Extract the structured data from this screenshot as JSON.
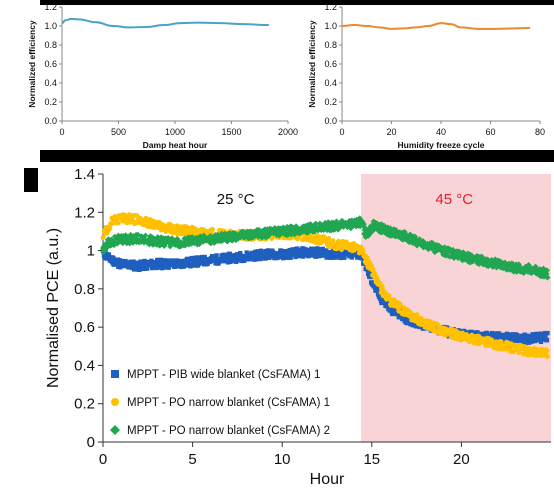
{
  "colors": {
    "top_line_a": "#4aa3c7",
    "top_line_b": "#ea8a2c",
    "blue": "#1f5fbf",
    "yellow": "#ffc000",
    "green": "#21a651",
    "warm_region": "#f8d4d6"
  },
  "chart_data": [
    {
      "type": "line",
      "xlabel": "Damp heat hour",
      "ylabel": "Normalized efficiency",
      "xlim": [
        0,
        2000
      ],
      "ylim": [
        0,
        1.2
      ],
      "xticks": [
        "0",
        "500",
        "1000",
        "1500",
        "2000"
      ],
      "yticks": [
        "0.0",
        "0.2",
        "0.4",
        "0.6",
        "0.8",
        "1.0",
        "1.2"
      ],
      "series": [
        {
          "color": "#4aa3c7",
          "points": [
            [
              0,
              1.03
            ],
            [
              30,
              1.06
            ],
            [
              80,
              1.075
            ],
            [
              150,
              1.07
            ],
            [
              300,
              1.04
            ],
            [
              450,
              1.0
            ],
            [
              600,
              0.985
            ],
            [
              750,
              0.99
            ],
            [
              900,
              1.01
            ],
            [
              1050,
              1.03
            ],
            [
              1200,
              1.035
            ],
            [
              1400,
              1.03
            ],
            [
              1600,
              1.02
            ],
            [
              1830,
              1.01
            ]
          ]
        }
      ]
    },
    {
      "type": "line",
      "xlabel": "Humidity freeze cycle",
      "ylabel": "Normalized efficiency",
      "xlim": [
        0,
        80
      ],
      "ylim": [
        0,
        1.2
      ],
      "xticks": [
        "0",
        "20",
        "40",
        "60",
        "80"
      ],
      "yticks": [
        "0.0",
        "0.2",
        "0.4",
        "0.6",
        "0.8",
        "1.0",
        "1.2"
      ],
      "series": [
        {
          "color": "#ea8a2c",
          "points": [
            [
              0,
              1.0
            ],
            [
              5,
              1.01
            ],
            [
              10,
              1.0
            ],
            [
              15,
              0.985
            ],
            [
              20,
              0.97
            ],
            [
              25,
              0.975
            ],
            [
              30,
              0.985
            ],
            [
              35,
              1.0
            ],
            [
              40,
              1.03
            ],
            [
              44,
              1.02
            ],
            [
              48,
              0.985
            ],
            [
              55,
              0.97
            ],
            [
              62,
              0.97
            ],
            [
              70,
              0.975
            ],
            [
              76,
              0.98
            ]
          ]
        }
      ]
    },
    {
      "type": "scatter",
      "xlabel": "Hour",
      "ylabel": "Normalised PCE (a.u.)",
      "xlim": [
        0,
        25
      ],
      "ylim": [
        0,
        1.4
      ],
      "xticks": [
        "0",
        "5",
        "10",
        "15",
        "20"
      ],
      "yticks": [
        "0",
        "0.2",
        "0.4",
        "0.6",
        "0.8",
        "1",
        "1.2",
        "1.4"
      ],
      "annotations": [
        "25 °C",
        "45 °C"
      ],
      "shaded_region": {
        "x_from": 14.4,
        "x_to": 25
      },
      "legend_position": "bottom-left",
      "series": [
        {
          "name": "MPPT - PIB wide blanket (CsFAMA) 1",
          "color": "#1f5fbf",
          "marker": "square",
          "points": [
            [
              0,
              0.99
            ],
            [
              0.3,
              0.96
            ],
            [
              1,
              0.93
            ],
            [
              2,
              0.92
            ],
            [
              3,
              0.93
            ],
            [
              4,
              0.93
            ],
            [
              5,
              0.94
            ],
            [
              6,
              0.95
            ],
            [
              7,
              0.96
            ],
            [
              8,
              0.97
            ],
            [
              9,
              0.98
            ],
            [
              10,
              0.98
            ],
            [
              11,
              0.99
            ],
            [
              12,
              0.99
            ],
            [
              13,
              0.98
            ],
            [
              14,
              0.98
            ],
            [
              14.4,
              0.98
            ],
            [
              15,
              0.84
            ],
            [
              15.5,
              0.75
            ],
            [
              16,
              0.7
            ],
            [
              17,
              0.64
            ],
            [
              18,
              0.61
            ],
            [
              19,
              0.58
            ],
            [
              20,
              0.56
            ],
            [
              21,
              0.55
            ],
            [
              22,
              0.55
            ],
            [
              23,
              0.54
            ],
            [
              24,
              0.54
            ],
            [
              24.8,
              0.55
            ]
          ]
        },
        {
          "name": "MPPT - PO narrow blanket (CsFAMA) 1",
          "color": "#ffc000",
          "marker": "circle",
          "points": [
            [
              0,
              1.08
            ],
            [
              0.5,
              1.15
            ],
            [
              1,
              1.17
            ],
            [
              2,
              1.16
            ],
            [
              3,
              1.13
            ],
            [
              4,
              1.11
            ],
            [
              5,
              1.1
            ],
            [
              6,
              1.09
            ],
            [
              7,
              1.08
            ],
            [
              8,
              1.08
            ],
            [
              9,
              1.08
            ],
            [
              10,
              1.09
            ],
            [
              11,
              1.08
            ],
            [
              12,
              1.06
            ],
            [
              13,
              1.03
            ],
            [
              14,
              1.02
            ],
            [
              14.4,
              1.0
            ],
            [
              15,
              0.9
            ],
            [
              15.5,
              0.8
            ],
            [
              16,
              0.74
            ],
            [
              17,
              0.67
            ],
            [
              18,
              0.62
            ],
            [
              19,
              0.58
            ],
            [
              20,
              0.55
            ],
            [
              21,
              0.53
            ],
            [
              22,
              0.51
            ],
            [
              23,
              0.49
            ],
            [
              24,
              0.47
            ],
            [
              24.8,
              0.46
            ]
          ]
        },
        {
          "name": "MPPT - PO narrow blanket (CsFAMA) 2",
          "color": "#21a651",
          "marker": "diamond",
          "points": [
            [
              0,
              1.0
            ],
            [
              0.3,
              1.04
            ],
            [
              1,
              1.06
            ],
            [
              2,
              1.06
            ],
            [
              3,
              1.05
            ],
            [
              4,
              1.04
            ],
            [
              5,
              1.05
            ],
            [
              6,
              1.06
            ],
            [
              7,
              1.07
            ],
            [
              8,
              1.08
            ],
            [
              9,
              1.09
            ],
            [
              10,
              1.1
            ],
            [
              11,
              1.11
            ],
            [
              12,
              1.12
            ],
            [
              13,
              1.13
            ],
            [
              14,
              1.14
            ],
            [
              14.4,
              1.15
            ],
            [
              14.7,
              1.08
            ],
            [
              15.1,
              1.13
            ],
            [
              16,
              1.1
            ],
            [
              17,
              1.07
            ],
            [
              18,
              1.03
            ],
            [
              19,
              1.0
            ],
            [
              20,
              0.97
            ],
            [
              21,
              0.95
            ],
            [
              22,
              0.93
            ],
            [
              23,
              0.91
            ],
            [
              24,
              0.9
            ],
            [
              24.8,
              0.88
            ]
          ]
        }
      ]
    }
  ]
}
